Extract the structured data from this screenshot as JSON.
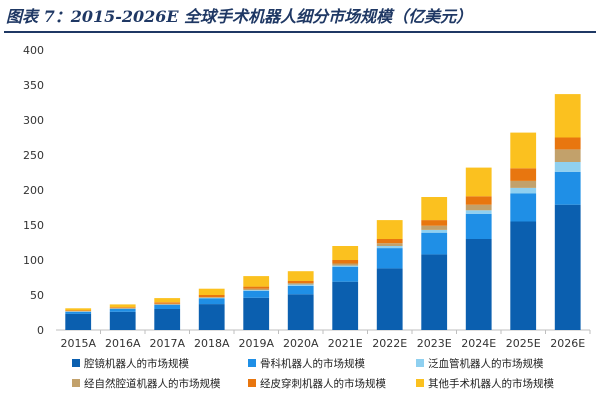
{
  "header": {
    "title": "图表 7：2015-2026E 全球手术机器人细分市场规模（亿美元）"
  },
  "colors": {
    "laparoscopic": "#0b5faf",
    "orthopedic": "#1f8fe6",
    "vascular": "#8fd0f0",
    "natural_orifice": "#c2a16b",
    "percutaneous": "#e8760f",
    "other": "#fbc11f",
    "axis": "#bfbfbf",
    "text": "#333333"
  },
  "chart_data": {
    "type": "bar",
    "stacked": true,
    "title": "图表 7：2015-2026E 全球手术机器人细分市场规模（亿美元）",
    "xlabel": "",
    "ylabel": "",
    "ylim": [
      0,
      400
    ],
    "yticks": [
      "0",
      "50",
      "100",
      "150",
      "200",
      "250",
      "300",
      "350",
      "400"
    ],
    "grid": false,
    "legend_position": "bottom",
    "categories": [
      "2015A",
      "2016A",
      "2017A",
      "2018A",
      "2019A",
      "2020A",
      "2021E",
      "2022E",
      "2023E",
      "2024E",
      "2025E",
      "2026E"
    ],
    "series": [
      {
        "name": "腔镜机器人的市场规模",
        "color_key": "laparoscopic",
        "values": [
          23,
          26,
          30,
          37,
          46,
          51,
          69,
          88,
          108,
          130,
          155,
          179
        ]
      },
      {
        "name": "骨科机器人的市场规模",
        "color_key": "orthopedic",
        "values": [
          3,
          4,
          6,
          8,
          10,
          12,
          21,
          29,
          31,
          36,
          40,
          47
        ]
      },
      {
        "name": "泛血管机器人的市场规模",
        "color_key": "vascular",
        "values": [
          0.5,
          0.5,
          0.5,
          1,
          1,
          2,
          2,
          3,
          4,
          5,
          8,
          14
        ]
      },
      {
        "name": "经自然腔道机器人的市场规模",
        "color_key": "natural_orifice",
        "values": [
          0.5,
          1,
          1,
          1,
          2,
          2,
          3,
          4,
          6,
          8,
          10,
          18
        ]
      },
      {
        "name": "经皮穿刺机器人的市场规模",
        "color_key": "percutaneous",
        "values": [
          1,
          1,
          2,
          3,
          3,
          3,
          5,
          6,
          8,
          12,
          18,
          17
        ]
      },
      {
        "name": "其他手术机器人的市场规模",
        "color_key": "other",
        "values": [
          3,
          4,
          6,
          9,
          15,
          14,
          20,
          27,
          33,
          41,
          51,
          62
        ]
      }
    ]
  }
}
